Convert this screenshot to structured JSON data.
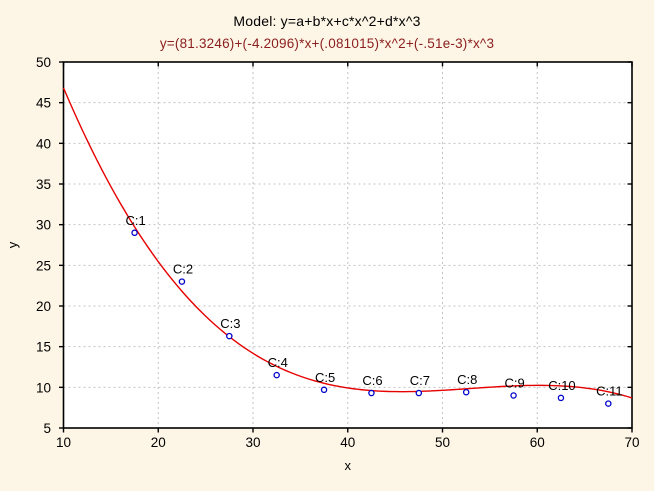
{
  "header": {
    "title_line1": "Model: y=a+b*x+c*x^2+d*x^3",
    "title_line2": "y=(81.3246)+(-4.2096)*x+(.081015)*x^2+(-.51e-3)*x^3"
  },
  "colors": {
    "background": "#fdf6e6",
    "plot_background": "#ffffff",
    "frame": "#000000",
    "grid": "#c3c3c3",
    "curve": "#e60000",
    "point_stroke": "#0000cc",
    "point_fill": "#ffffff",
    "text": "#000000",
    "subtitle_text": "#8b1e1e"
  },
  "chart_data": {
    "type": "scatter",
    "title": "Model: y=a+b*x+c*x^2+d*x^3",
    "subtitle": "y=(81.3246)+(-4.2096)*x+(.081015)*x^2+(-.51e-3)*x^3",
    "xlabel": "x",
    "ylabel": "y",
    "xlim": [
      10,
      70
    ],
    "ylim": [
      5,
      50
    ],
    "x_ticks": [
      10,
      20,
      30,
      40,
      50,
      60,
      70
    ],
    "y_ticks": [
      5,
      10,
      15,
      20,
      25,
      30,
      35,
      40,
      45,
      50
    ],
    "grid": "dotted, interior gridlines at every tick",
    "legend_position": "none",
    "points": [
      {
        "label": "C:1",
        "x": 17.5,
        "y": 29.0
      },
      {
        "label": "C:2",
        "x": 22.5,
        "y": 23.0
      },
      {
        "label": "C:3",
        "x": 27.5,
        "y": 16.3
      },
      {
        "label": "C:4",
        "x": 32.5,
        "y": 11.5
      },
      {
        "label": "C:5",
        "x": 37.5,
        "y": 9.7
      },
      {
        "label": "C:6",
        "x": 42.5,
        "y": 9.3
      },
      {
        "label": "C:7",
        "x": 47.5,
        "y": 9.3
      },
      {
        "label": "C:8",
        "x": 52.5,
        "y": 9.4
      },
      {
        "label": "C:9",
        "x": 57.5,
        "y": 9.0
      },
      {
        "label": "C:10",
        "x": 62.5,
        "y": 8.7
      },
      {
        "label": "C:11",
        "x": 67.5,
        "y": 8.0
      }
    ],
    "fit_curve": {
      "kind": "cubic polynomial y = a + b*x + c*x^2 + d*x^3",
      "a": 81.3246,
      "b": -4.2096,
      "c": 0.081015,
      "d": -0.00051,
      "x_range": [
        10,
        70
      ]
    }
  }
}
